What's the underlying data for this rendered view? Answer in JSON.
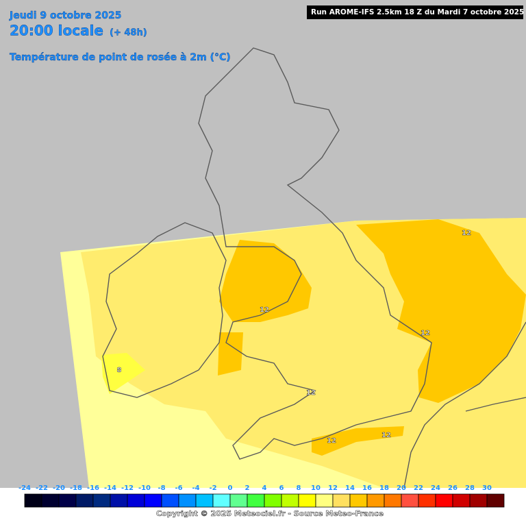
{
  "header": {
    "date": "Jeudi 9 octobre 2025",
    "time": "20:00 locale",
    "lead": "(+ 48h)",
    "parameter": "Température de point de rosée à 2m (°C)",
    "run": "Run AROME-IFS 2.5km 18 Z du Mardi 7 octobre 2025"
  },
  "contour_labels": [
    12,
    12,
    12,
    12,
    12,
    12,
    8
  ],
  "colorbar": {
    "values": [
      -24,
      -22,
      -20,
      -18,
      -16,
      -14,
      -12,
      -10,
      -8,
      -6,
      -4,
      -2,
      0,
      2,
      4,
      6,
      8,
      10,
      12,
      14,
      16,
      18,
      20,
      22,
      24,
      26,
      28,
      30
    ],
    "colors": [
      "#000018",
      "#000030",
      "#000048",
      "#001a66",
      "#002a80",
      "#0010a8",
      "#0000d8",
      "#0000ff",
      "#0050ff",
      "#0090ff",
      "#00c0ff",
      "#60ffff",
      "#60ff90",
      "#40ff40",
      "#80ff00",
      "#c0ff00",
      "#ffff00",
      "#ffff80",
      "#ffe060",
      "#ffc800",
      "#ff9900",
      "#ff7800",
      "#ff5040",
      "#ff3000",
      "#ff0000",
      "#d00000",
      "#a00000",
      "#600000"
    ]
  },
  "footer": {
    "copyright": "Copyright © 2025 Meteociel.fr - Source Meteo-France"
  }
}
